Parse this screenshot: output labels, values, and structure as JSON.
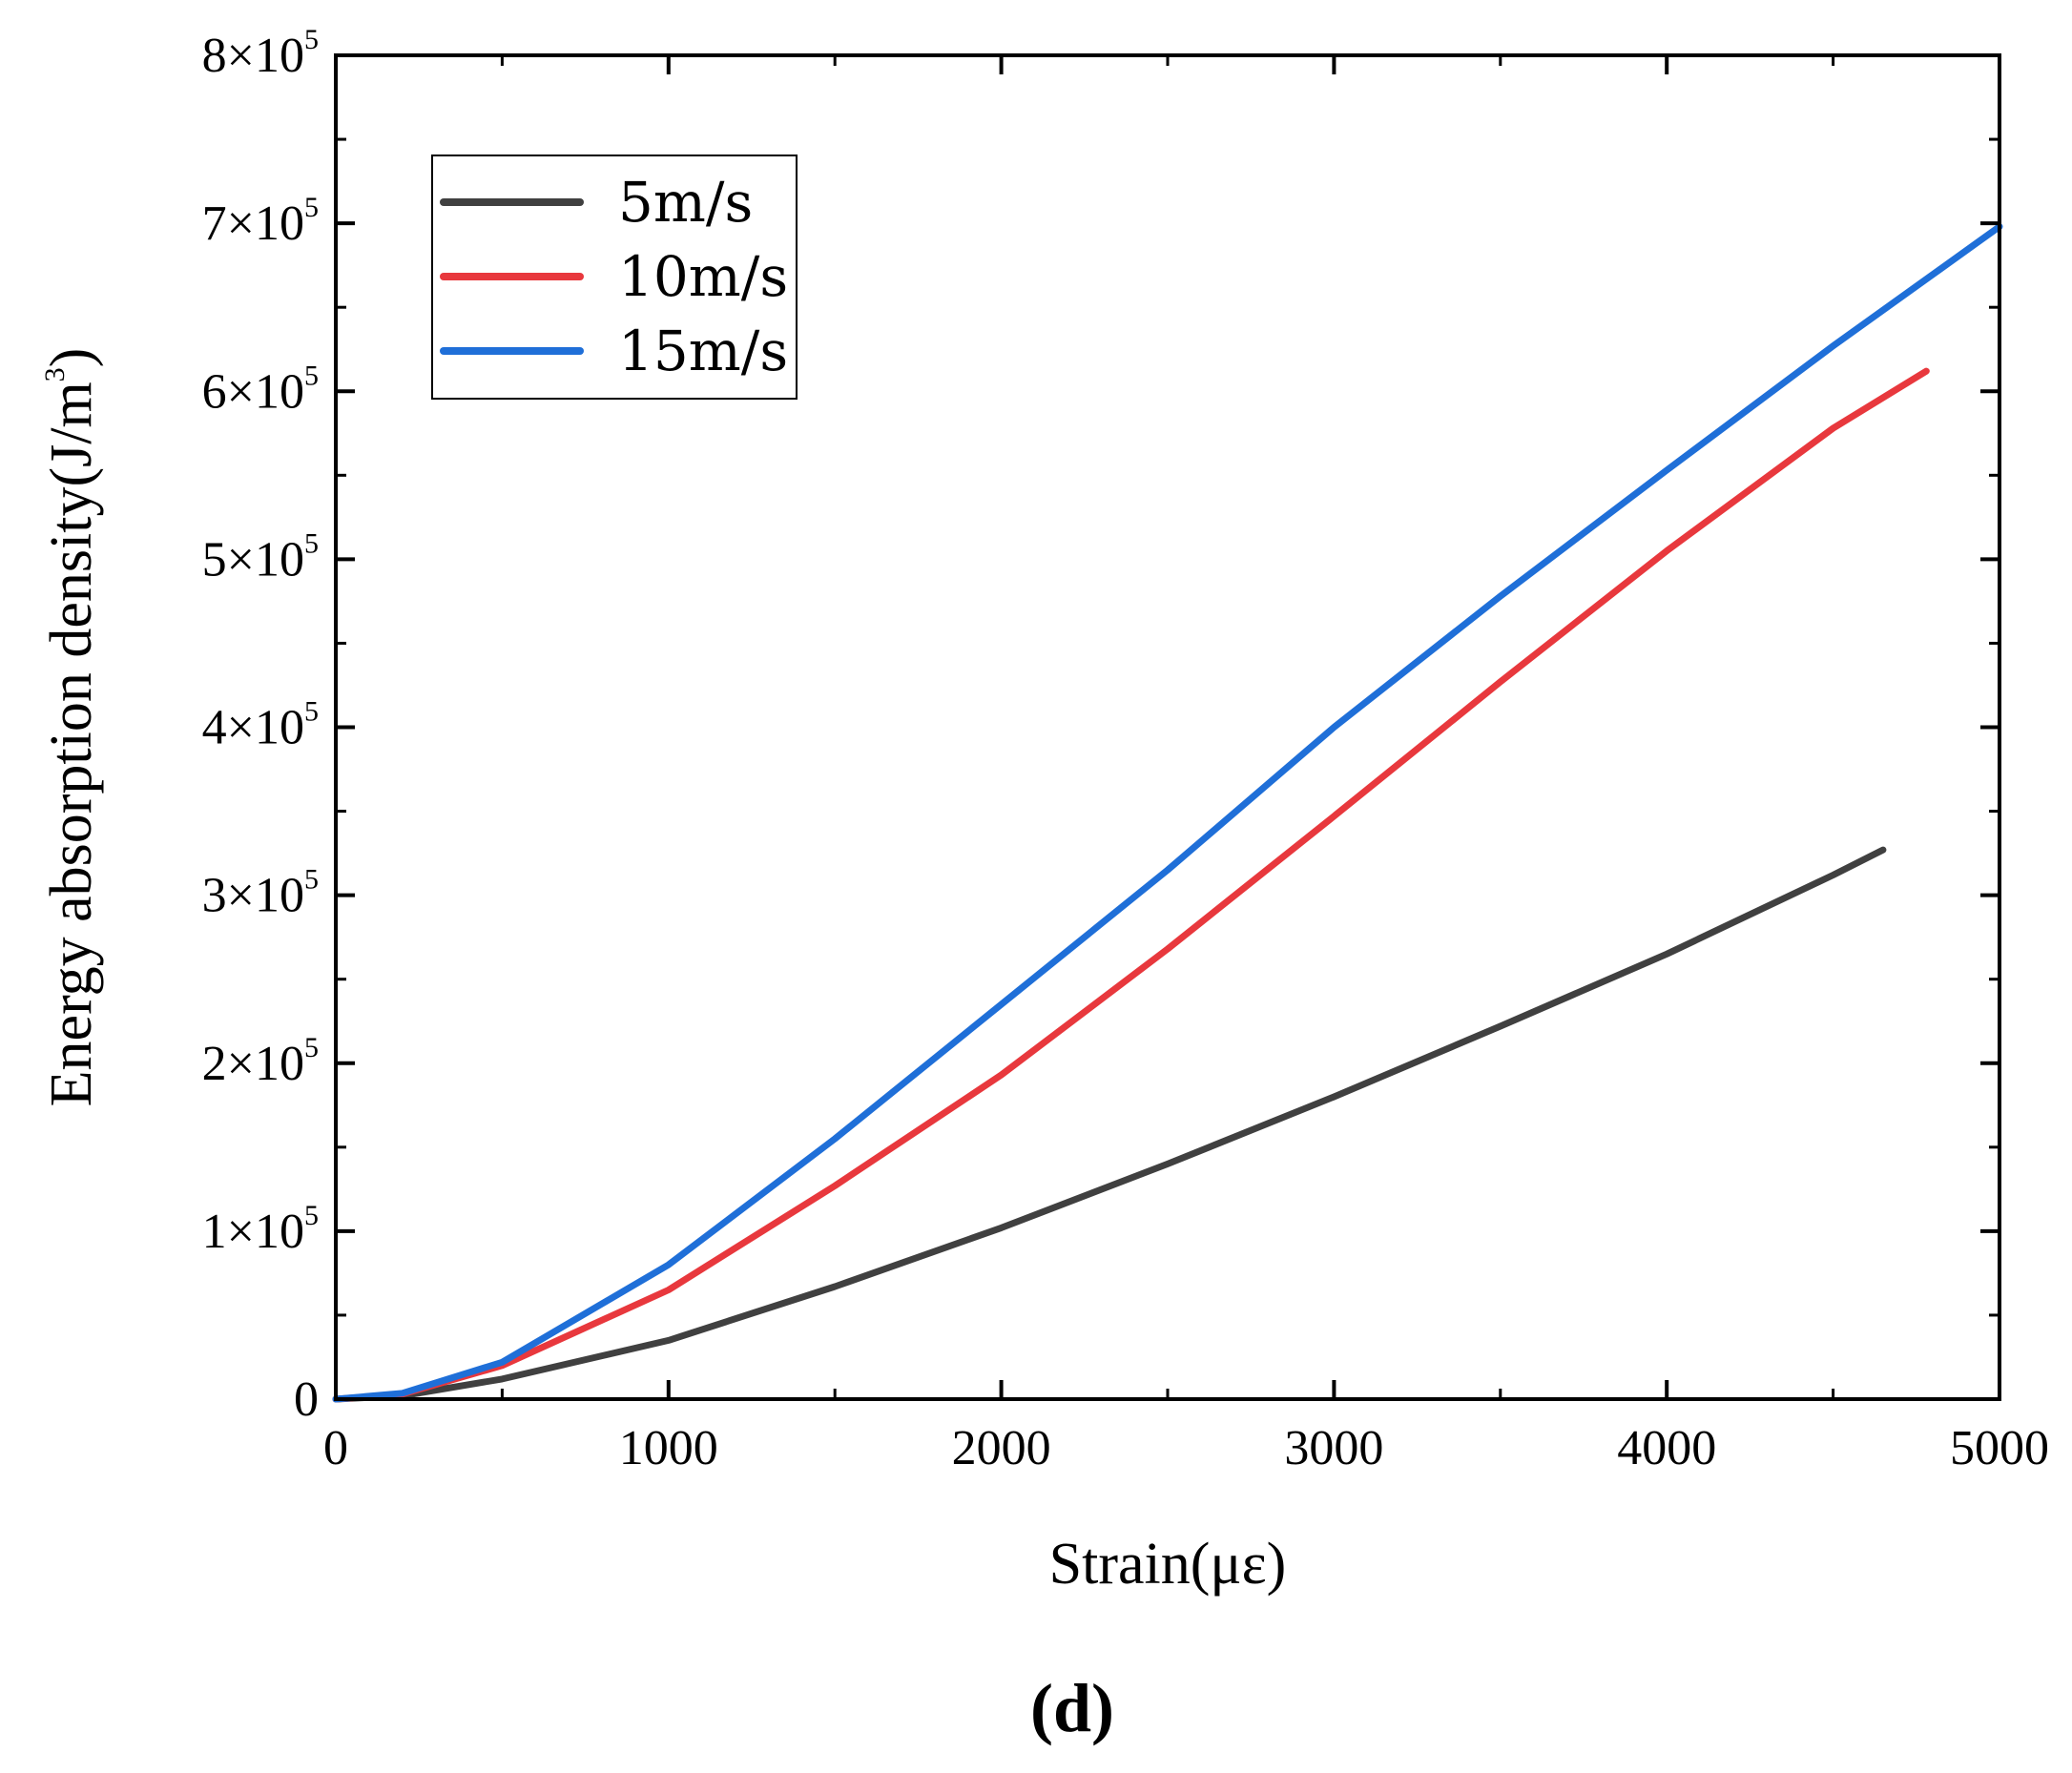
{
  "chart_data": {
    "type": "line",
    "xlabel": "Strain(με)",
    "ylabel": "Energy absorption density(J/m",
    "ylabel_sup": "3",
    "ylabel_close": ")",
    "panel_label": "(d)",
    "xlim": [
      0,
      5000
    ],
    "ylim": [
      0,
      800000
    ],
    "grid": false,
    "legend_position": "top-left",
    "x_ticks": [
      {
        "value": 0,
        "label": "0"
      },
      {
        "value": 1000,
        "label": "1000"
      },
      {
        "value": 2000,
        "label": "2000"
      },
      {
        "value": 3000,
        "label": "3000"
      },
      {
        "value": 4000,
        "label": "4000"
      },
      {
        "value": 5000,
        "label": "5000"
      }
    ],
    "y_ticks": [
      {
        "value": 0,
        "mant": "0",
        "exp": ""
      },
      {
        "value": 100000,
        "mant": "1×10",
        "exp": "5"
      },
      {
        "value": 200000,
        "mant": "2×10",
        "exp": "5"
      },
      {
        "value": 300000,
        "mant": "3×10",
        "exp": "5"
      },
      {
        "value": 400000,
        "mant": "4×10",
        "exp": "5"
      },
      {
        "value": 500000,
        "mant": "5×10",
        "exp": "5"
      },
      {
        "value": 600000,
        "mant": "6×10",
        "exp": "5"
      },
      {
        "value": 700000,
        "mant": "7×10",
        "exp": "5"
      },
      {
        "value": 800000,
        "mant": "8×10",
        "exp": "5"
      }
    ],
    "series": [
      {
        "name": "5m/s",
        "color": "#404040",
        "x": [
          0,
          200,
          500,
          1000,
          1500,
          2000,
          2500,
          3000,
          3500,
          4000,
          4500,
          4650
        ],
        "y": [
          0,
          2000,
          12000,
          35000,
          67000,
          102000,
          140000,
          180000,
          222000,
          265000,
          312000,
          327000
        ]
      },
      {
        "name": "10m/s",
        "color": "#e8383d",
        "x": [
          0,
          200,
          500,
          1000,
          1500,
          2000,
          2500,
          3000,
          3500,
          4000,
          4500,
          4780
        ],
        "y": [
          0,
          3000,
          20000,
          65000,
          127000,
          193000,
          268000,
          347000,
          427000,
          505000,
          578000,
          612000
        ]
      },
      {
        "name": "15m/s",
        "color": "#1f6fd8",
        "x": [
          0,
          200,
          500,
          1000,
          1500,
          2000,
          2500,
          3000,
          3500,
          4000,
          4500,
          5000
        ],
        "y": [
          0,
          3500,
          22000,
          80000,
          155000,
          235000,
          315000,
          400000,
          478000,
          553000,
          627000,
          698000
        ]
      }
    ]
  }
}
